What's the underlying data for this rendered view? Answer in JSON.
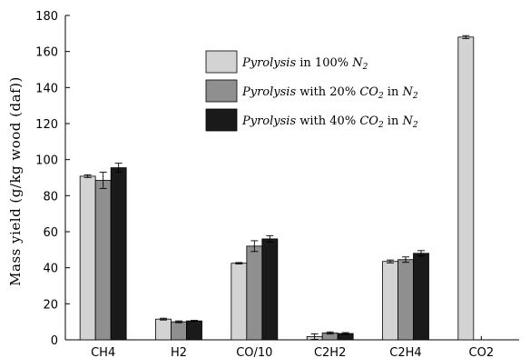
{
  "chart_data": {
    "type": "bar",
    "ylabel": "Mass yield (g/kg wood (daf))",
    "xlabel": "",
    "ylim": [
      0,
      180
    ],
    "yticks": [
      0,
      20,
      40,
      60,
      80,
      100,
      120,
      140,
      160,
      180
    ],
    "categories": [
      "CH4",
      "H2",
      "CO/10",
      "C2H2",
      "C2H4",
      "CO2"
    ],
    "series": [
      {
        "name": "Pyrolysis in 100% N2",
        "legend_parts": [
          {
            "text": "Pyrolysis",
            "italic": true
          },
          {
            "text": " in 100% ",
            "italic": false
          },
          {
            "text": "N",
            "italic": true
          },
          {
            "text": "2",
            "italic": true,
            "sub": true
          }
        ],
        "color": "#d3d3d3",
        "values": [
          90.8,
          11.5,
          42.5,
          1.8,
          43.5,
          168
        ],
        "errors": [
          0.7,
          0.5,
          0.4,
          1.5,
          0.8,
          0.8
        ]
      },
      {
        "name": "Pyrolysis with 20% CO2 in N2",
        "legend_parts": [
          {
            "text": "Pyrolysis",
            "italic": true
          },
          {
            "text": " with 20% ",
            "italic": false
          },
          {
            "text": "CO",
            "italic": true
          },
          {
            "text": "2",
            "italic": true,
            "sub": true
          },
          {
            "text": " in ",
            "italic": false
          },
          {
            "text": "N",
            "italic": true
          },
          {
            "text": "2",
            "italic": true,
            "sub": true
          }
        ],
        "color": "#8f8f8f",
        "values": [
          88.5,
          10.0,
          52.0,
          3.8,
          44.5,
          0
        ],
        "errors": [
          4.5,
          0.5,
          3.0,
          0.6,
          1.5,
          0
        ]
      },
      {
        "name": "Pyrolysis with 40% CO2 in N2",
        "legend_parts": [
          {
            "text": "Pyrolysis",
            "italic": true
          },
          {
            "text": " with 40% ",
            "italic": false
          },
          {
            "text": "CO",
            "italic": true
          },
          {
            "text": "2",
            "italic": true,
            "sub": true
          },
          {
            "text": " in ",
            "italic": false
          },
          {
            "text": "N",
            "italic": true
          },
          {
            "text": "2",
            "italic": true,
            "sub": true
          }
        ],
        "color": "#1a1a1a",
        "values": [
          95.5,
          10.5,
          56.0,
          3.5,
          48.0,
          0
        ],
        "errors": [
          2.5,
          0.3,
          1.8,
          0.5,
          1.5,
          0
        ]
      }
    ],
    "legend_position": "upper-center",
    "grid": false
  }
}
